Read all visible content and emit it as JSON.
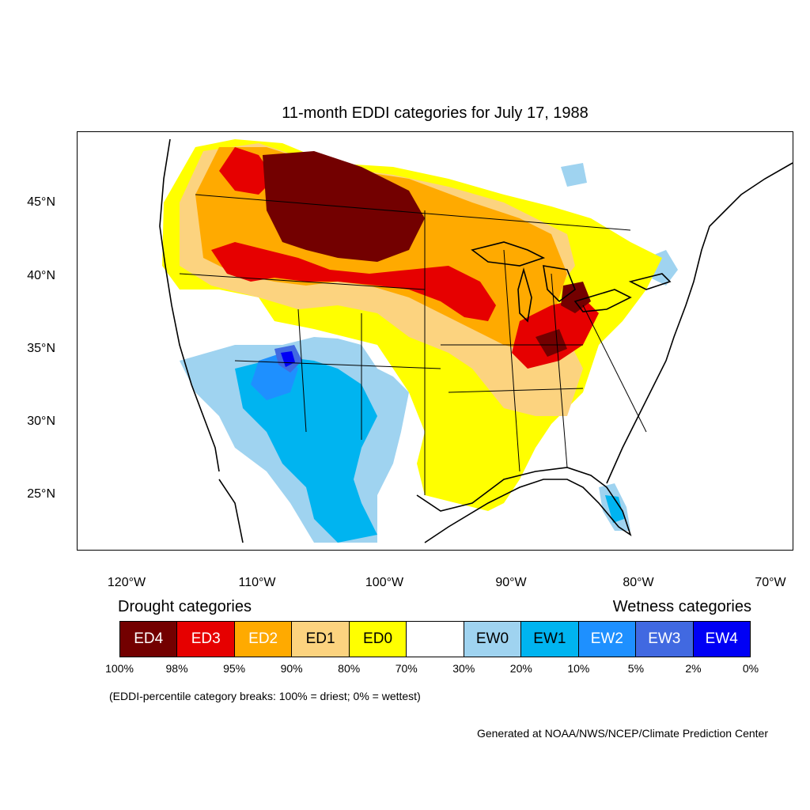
{
  "title": "11-month EDDI categories for July 17, 1988",
  "lat_labels": [
    "45°N",
    "40°N",
    "35°N",
    "30°N",
    "25°N"
  ],
  "lon_labels": [
    "120°W",
    "110°W",
    "100°W",
    "90°W",
    "80°W",
    "70°W"
  ],
  "legend": {
    "drought_title": "Drought categories",
    "wetness_title": "Wetness categories",
    "categories": [
      {
        "label": "ED4",
        "color": "#730000",
        "text_color": "#ffffff"
      },
      {
        "label": "ED3",
        "color": "#e60000",
        "text_color": "#ffffff"
      },
      {
        "label": "ED2",
        "color": "#ffaa00",
        "text_color": "#ffffff"
      },
      {
        "label": "ED1",
        "color": "#fcd37f",
        "text_color": "#000000"
      },
      {
        "label": "ED0",
        "color": "#ffff00",
        "text_color": "#000000"
      },
      {
        "label": "",
        "color": "#ffffff",
        "text_color": "#000000"
      },
      {
        "label": "EW0",
        "color": "#9fd3f0",
        "text_color": "#000000"
      },
      {
        "label": "EW1",
        "color": "#00b4f0",
        "text_color": "#000000"
      },
      {
        "label": "EW2",
        "color": "#1e90ff",
        "text_color": "#ffffff"
      },
      {
        "label": "EW3",
        "color": "#4169e1",
        "text_color": "#ffffff"
      },
      {
        "label": "EW4",
        "color": "#0000f5",
        "text_color": "#ffffff"
      }
    ],
    "breaks": [
      "100%",
      "98%",
      "95%",
      "90%",
      "80%",
      "70%",
      "30%",
      "20%",
      "10%",
      "5%",
      "2%",
      "0%"
    ]
  },
  "breaks_note": "(EDDI-percentile category breaks: 100% = driest; 0% = wettest)",
  "credit": "Generated at NOAA/NWS/NCEP/Climate Prediction Center"
}
